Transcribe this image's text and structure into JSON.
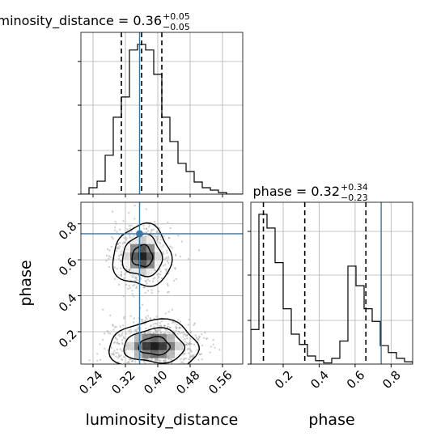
{
  "chart_data": {
    "type": "corner",
    "parameters": [
      {
        "name": "luminosity_distance",
        "xlabel": "luminosity_distance",
        "title": {
          "main": "luminosity_distance = 0.36",
          "sup": "+0.05",
          "sub": "−0.05"
        },
        "range": [
          0.21,
          0.61
        ],
        "ticks": [
          0.24,
          0.32,
          0.4,
          0.48,
          0.56
        ],
        "tick_labels": [
          "0.24",
          "0.32",
          "0.40",
          "0.48",
          "0.56"
        ],
        "quantiles": [
          0.31,
          0.36,
          0.41
        ],
        "truth": 0.355,
        "histogram": {
          "bin_edges": [
            0.21,
            0.23,
            0.25,
            0.27,
            0.29,
            0.31,
            0.33,
            0.35,
            0.37,
            0.39,
            0.41,
            0.43,
            0.45,
            0.47,
            0.49,
            0.51,
            0.53,
            0.55,
            0.57,
            0.59,
            0.61
          ],
          "counts": [
            0,
            8,
            16,
            48,
            95,
            120,
            178,
            185,
            178,
            148,
            95,
            65,
            38,
            28,
            15,
            8,
            5,
            2,
            0,
            0
          ]
        }
      },
      {
        "name": "phase",
        "xlabel": "phase",
        "ylabel": "phase",
        "title": {
          "main": "phase = 0.32",
          "sup": "+0.34",
          "sub": "−0.23"
        },
        "range": [
          0.02,
          0.92
        ],
        "ticks": [
          0.2,
          0.4,
          0.6,
          0.8
        ],
        "tick_labels": [
          "0.2",
          "0.4",
          "0.6",
          "0.8"
        ],
        "quantiles": [
          0.09,
          0.32,
          0.66
        ],
        "truth": 0.745,
        "histogram": {
          "bin_edges": [
            0.02,
            0.065,
            0.11,
            0.155,
            0.2,
            0.245,
            0.29,
            0.335,
            0.38,
            0.425,
            0.47,
            0.515,
            0.56,
            0.605,
            0.65,
            0.695,
            0.74,
            0.785,
            0.83,
            0.875,
            0.92
          ],
          "counts": [
            30,
            130,
            118,
            88,
            48,
            26,
            17,
            7,
            3,
            1,
            5,
            20,
            85,
            68,
            48,
            37,
            16,
            10,
            5,
            2
          ]
        }
      }
    ],
    "truth_point": {
      "luminosity_distance": 0.355,
      "phase": 0.745
    },
    "grid": true
  }
}
